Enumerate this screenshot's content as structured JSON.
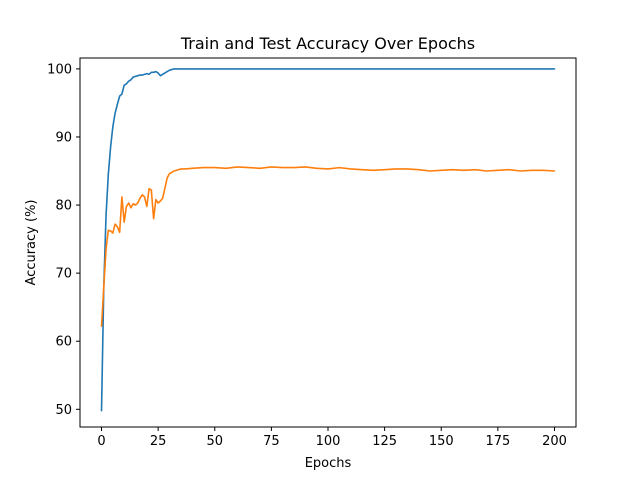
{
  "chart_data": {
    "type": "line",
    "title": "Train and Test Accuracy Over Epochs",
    "xlabel": "Epochs",
    "ylabel": "Accuracy (%)",
    "xlim": [
      -9.5,
      209.5
    ],
    "ylim": [
      47.4,
      101.6
    ],
    "xticks": [
      0,
      25,
      50,
      75,
      100,
      125,
      150,
      175,
      200
    ],
    "xtick_labels": [
      "0",
      "25",
      "50",
      "75",
      "100",
      "125",
      "150",
      "175",
      "200"
    ],
    "yticks": [
      50,
      60,
      70,
      80,
      90,
      100
    ],
    "ytick_labels": [
      "50",
      "60",
      "70",
      "80",
      "90",
      "100"
    ],
    "grid": false,
    "legend": false,
    "series": [
      {
        "color": "#1f77b4",
        "x": [
          0,
          1,
          2,
          3,
          4,
          5,
          6,
          7,
          8,
          9,
          10,
          11,
          12,
          13,
          14,
          15,
          16,
          17,
          18,
          19,
          20,
          21,
          22,
          23,
          24,
          25,
          26,
          27,
          28,
          29,
          30,
          31,
          32,
          33,
          35,
          40,
          50,
          75,
          100,
          125,
          150,
          175,
          200
        ],
        "y": [
          49.8,
          68.0,
          78.5,
          84.5,
          88.5,
          91.5,
          93.5,
          94.8,
          96.0,
          96.3,
          97.6,
          97.8,
          98.2,
          98.4,
          98.8,
          98.9,
          99.0,
          99.1,
          99.1,
          99.2,
          99.3,
          99.2,
          99.5,
          99.5,
          99.6,
          99.4,
          99.0,
          99.2,
          99.4,
          99.6,
          99.8,
          99.9,
          100.0,
          100.0,
          100.0,
          100.0,
          100.0,
          100.0,
          100.0,
          100.0,
          100.0,
          100.0,
          100.0
        ]
      },
      {
        "color": "#ff7f0e",
        "x": [
          0,
          1,
          2,
          3,
          4,
          5,
          6,
          7,
          8,
          9,
          10,
          11,
          12,
          13,
          14,
          15,
          16,
          17,
          18,
          19,
          20,
          21,
          22,
          23,
          24,
          25,
          26,
          27,
          28,
          29,
          30,
          31,
          32,
          33,
          34,
          35,
          37,
          40,
          45,
          50,
          55,
          60,
          65,
          70,
          75,
          80,
          85,
          90,
          95,
          100,
          105,
          110,
          115,
          120,
          125,
          130,
          135,
          140,
          145,
          150,
          155,
          160,
          165,
          170,
          175,
          180,
          185,
          190,
          195,
          200
        ],
        "y": [
          62.2,
          68.0,
          73.5,
          76.3,
          76.2,
          75.9,
          77.2,
          76.8,
          76.0,
          81.2,
          77.5,
          79.8,
          80.3,
          79.6,
          80.2,
          80.0,
          80.3,
          81.0,
          81.5,
          81.2,
          79.8,
          82.4,
          82.2,
          78.0,
          80.8,
          80.3,
          80.6,
          81.0,
          82.5,
          84.0,
          84.6,
          84.8,
          85.0,
          85.1,
          85.2,
          85.3,
          85.3,
          85.4,
          85.5,
          85.5,
          85.4,
          85.6,
          85.5,
          85.4,
          85.6,
          85.5,
          85.5,
          85.6,
          85.4,
          85.3,
          85.5,
          85.3,
          85.2,
          85.1,
          85.2,
          85.3,
          85.3,
          85.2,
          85.0,
          85.1,
          85.2,
          85.1,
          85.2,
          85.0,
          85.1,
          85.2,
          85.0,
          85.1,
          85.1,
          85.0
        ]
      }
    ]
  }
}
